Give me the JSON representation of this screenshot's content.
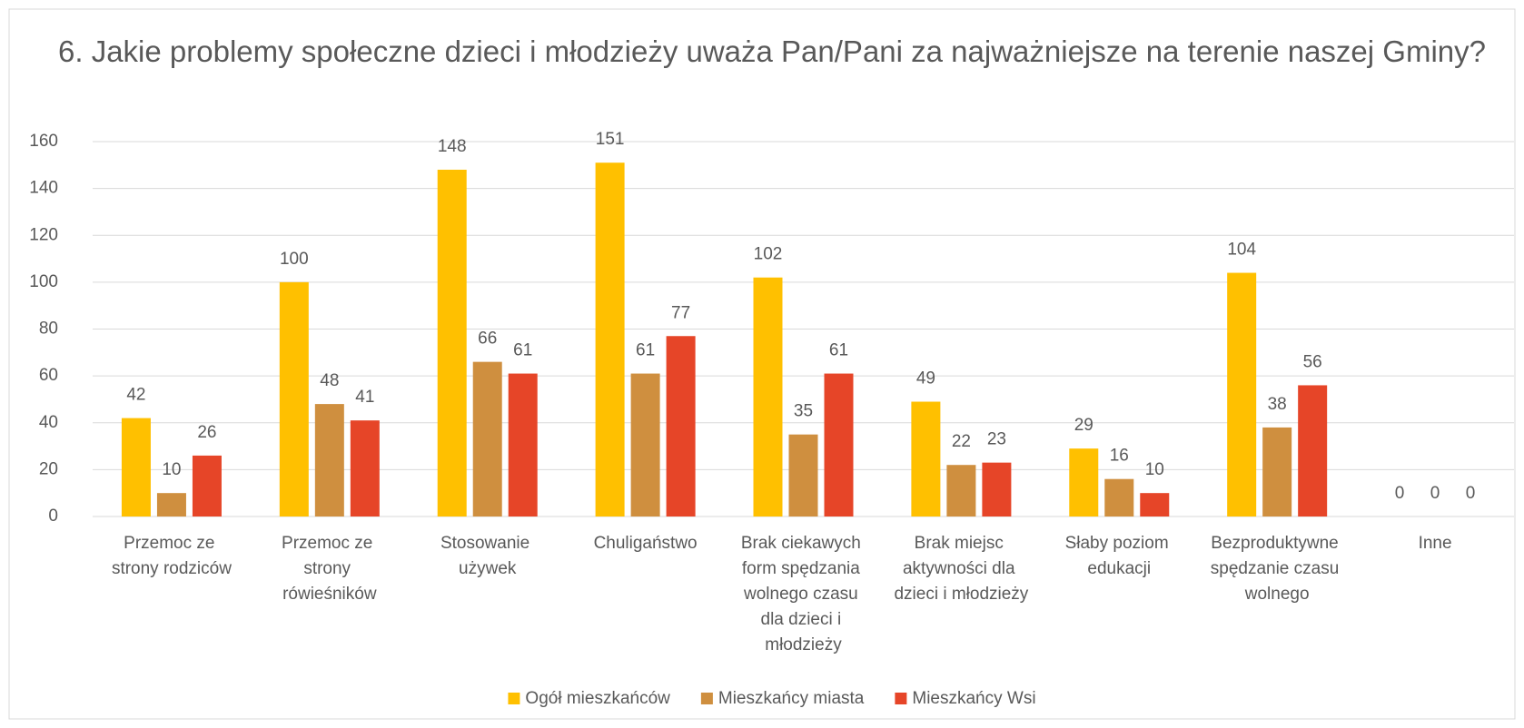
{
  "chart_data": {
    "type": "bar",
    "title": "6. Jakie problemy społeczne dzieci i młodzieży uważa Pan/Pani za najważniejsze na terenie  naszej Gminy?",
    "categories": [
      "Przemoc ze strony rodziców",
      "Przemoc ze strony rówieśników",
      "Stosowanie używek",
      "Chuligaństwo",
      "Brak ciekawych form spędzania wolnego czasu dla dzieci i młodzieży",
      "Brak miejsc aktywności dla dzieci i młodzieży",
      "Słaby poziom edukacji",
      "Bezproduktywne spędzanie czasu wolnego",
      "Inne"
    ],
    "series": [
      {
        "name": "Ogół mieszkańców",
        "color": "#ffc000",
        "values": [
          42,
          100,
          148,
          151,
          102,
          49,
          29,
          104,
          0
        ]
      },
      {
        "name": "Mieszkańcy miasta",
        "color": "#cf8f3f",
        "values": [
          10,
          48,
          66,
          61,
          35,
          22,
          16,
          38,
          0
        ]
      },
      {
        "name": "Mieszkańcy Wsi",
        "color": "#e64528",
        "values": [
          26,
          41,
          61,
          77,
          61,
          23,
          10,
          56,
          0
        ]
      }
    ],
    "ylim": [
      0,
      160
    ],
    "yticks": [
      0,
      20,
      40,
      60,
      80,
      100,
      120,
      140,
      160
    ],
    "grid": true,
    "legend": "bottom"
  }
}
